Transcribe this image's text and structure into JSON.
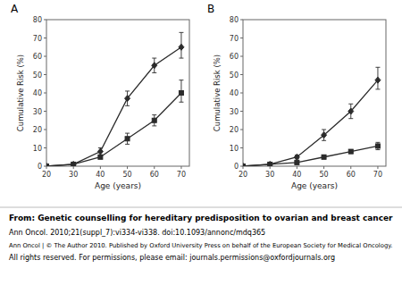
{
  "chart_data": [
    {
      "type": "line",
      "x": [
        20,
        30,
        40,
        50,
        60,
        70
      ],
      "series": [
        {
          "color": "#2b2b2b",
          "marker": "diamond",
          "line_style": "solid",
          "values": [
            0,
            1,
            8,
            37,
            55,
            65
          ],
          "yerr_lo": [
            0,
            0.5,
            2,
            4,
            4,
            6
          ],
          "yerr_hi": [
            0,
            0.5,
            2,
            4,
            4,
            8
          ]
        },
        {
          "color": "#2b2b2b",
          "marker": "square",
          "line_style": "solid",
          "values": [
            0,
            1,
            5,
            15,
            25,
            40
          ],
          "yerr_lo": [
            0,
            0.5,
            1,
            3,
            3,
            5
          ],
          "yerr_hi": [
            0,
            0.5,
            1,
            3,
            3,
            7
          ]
        }
      ],
      "xlabel": "Age (years)",
      "ylabel": "Cumulative Risk (%)",
      "xlim": [
        20,
        73
      ],
      "ylim": [
        0,
        80
      ],
      "xticks": [
        20,
        30,
        40,
        50,
        60,
        70
      ],
      "yticks": [
        0,
        10,
        20,
        30,
        40,
        50,
        60,
        70,
        80
      ],
      "grid": false,
      "annotations": [
        "A",
        "From: Genetic counselling for hereditary predisposition to ovarian and breast cancer",
        "Ann Oncol. 2010;21(suppl_7):vi334-vi338. doi:10.1093/annonc/mdq365",
        "Ann Oncol | © The Author 2010. Published by Oxford University Press on behalf of the European Society for Medical Oncology.",
        "All rights reserved. For permissions, please email: journals.permissions@oxfordjournals.org"
      ]
    },
    {
      "type": "line",
      "x": [
        20,
        30,
        40,
        50,
        60,
        70
      ],
      "series": [
        {
          "color": "#2b2b2b",
          "marker": "diamond",
          "line_style": "solid",
          "values": [
            0,
            1,
            5,
            17,
            30,
            47
          ],
          "yerr_lo": [
            0,
            0.5,
            1,
            3,
            4,
            5
          ],
          "yerr_hi": [
            0,
            0.5,
            1,
            3,
            4,
            7
          ]
        },
        {
          "color": "#2b2b2b",
          "marker": "square",
          "line_style": "solid",
          "values": [
            0,
            1,
            2,
            5,
            8,
            11
          ],
          "yerr_lo": [
            0,
            0.5,
            0.5,
            1,
            1,
            2
          ],
          "yerr_hi": [
            0,
            0.5,
            0.5,
            1,
            1,
            2
          ]
        }
      ],
      "xlabel": "Age (years)",
      "ylabel": "Cumulative Risk (%)",
      "xlim": [
        20,
        73
      ],
      "ylim": [
        0,
        80
      ],
      "xticks": [
        20,
        30,
        40,
        50,
        60,
        70
      ],
      "yticks": [
        0,
        10,
        20,
        30,
        40,
        50,
        60,
        70,
        80
      ],
      "grid": false,
      "annotations": [
        "B"
      ]
    }
  ]
}
